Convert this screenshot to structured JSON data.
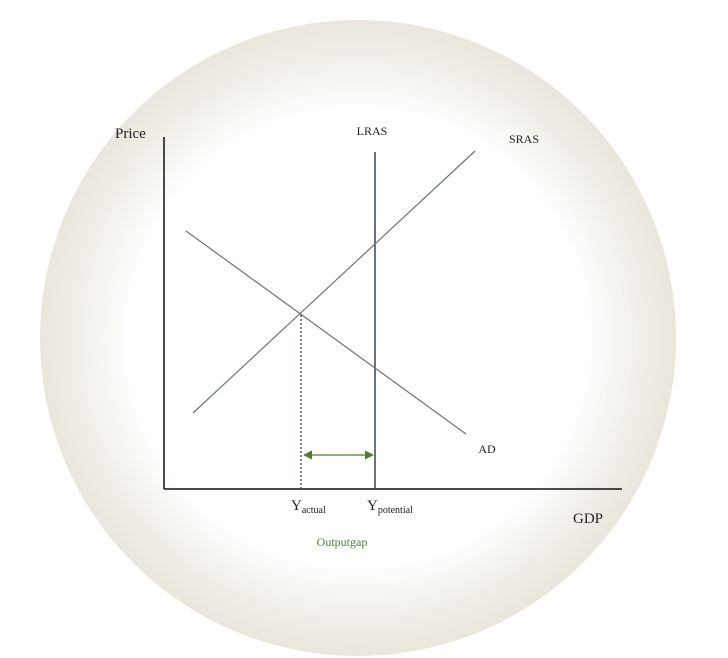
{
  "axes": {
    "y_label": "Price",
    "x_label": "GDP"
  },
  "curves": [
    {
      "label": "LRAS"
    },
    {
      "label": "SRAS"
    },
    {
      "label": "AD"
    }
  ],
  "x_markers": [
    {
      "symbol": "Y",
      "subscript": "actual"
    },
    {
      "symbol": "Y",
      "subscript": "potential"
    }
  ],
  "annotation": "Outputgap"
}
